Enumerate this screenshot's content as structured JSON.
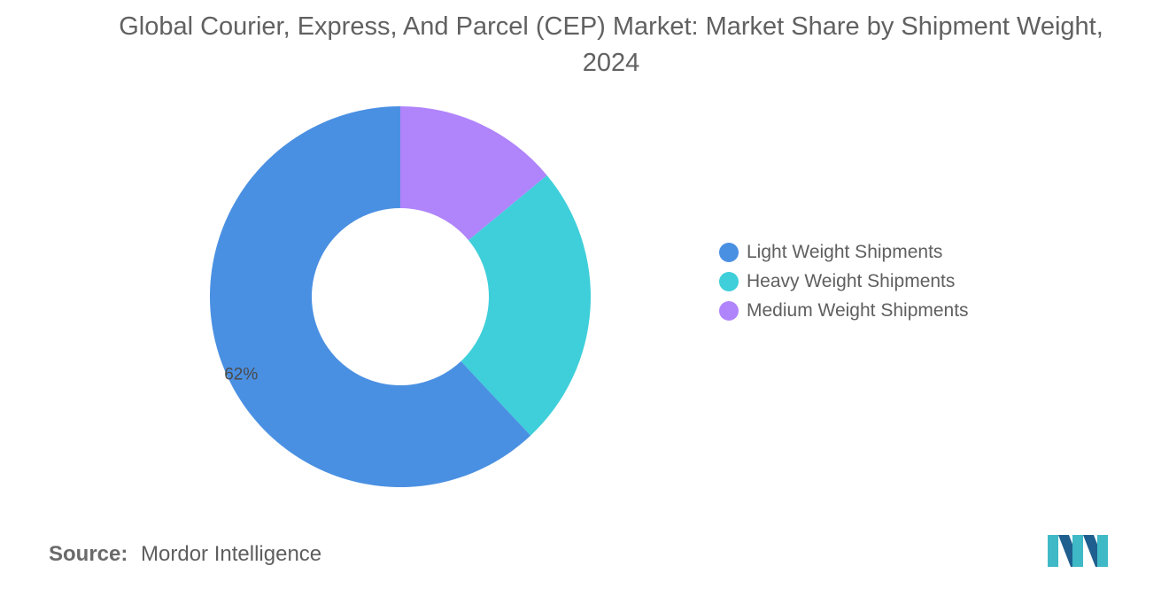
{
  "chart_data": {
    "type": "pie",
    "variant": "donut",
    "title": "Global Courier, Express, And Parcel (CEP) Market: Market Share by Shipment Weight, 2024",
    "categories": [
      "Light Weight Shipments",
      "Heavy Weight Shipments",
      "Medium Weight Shipments"
    ],
    "values": [
      62,
      24,
      14
    ],
    "unit": "%",
    "data_labels": [
      {
        "category": "Light Weight Shipments",
        "text": "62%"
      }
    ],
    "colors": [
      "#4a90e2",
      "#3ecfda",
      "#b084fb"
    ],
    "legend": "right"
  },
  "footer": {
    "source_label": "Source:",
    "source_value": "Mordor Intelligence"
  },
  "logo": {
    "icon": "mordor-intelligence-logo-icon",
    "colors": [
      "#1f5f8f",
      "#3fb9c6"
    ]
  }
}
